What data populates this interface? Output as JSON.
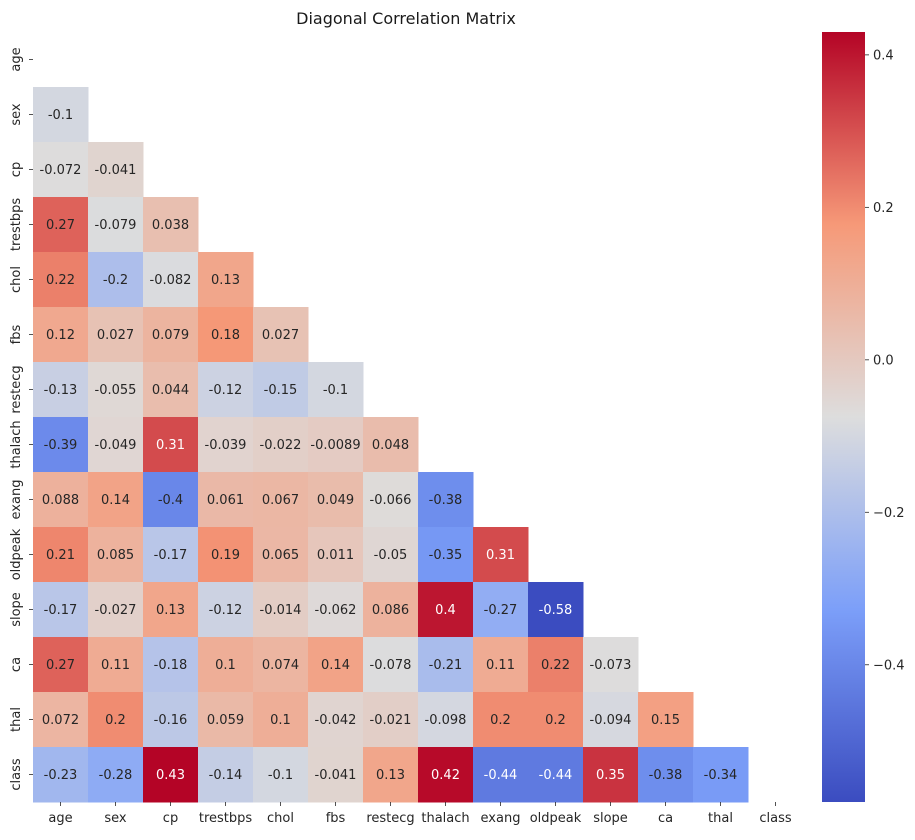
{
  "chart_data": {
    "type": "heatmap",
    "title": "Diagonal Correlation Matrix",
    "mask": "upper-triangle-including-diagonal",
    "colormap": "coolwarm",
    "labels": [
      "age",
      "sex",
      "cp",
      "trestbps",
      "chol",
      "fbs",
      "restecg",
      "thalach",
      "exang",
      "oldpeak",
      "slope",
      "ca",
      "thal",
      "class"
    ],
    "cells": [
      {
        "row": "sex",
        "col": "age",
        "value": -0.1,
        "label": "-0.1"
      },
      {
        "row": "cp",
        "col": "age",
        "value": -0.072,
        "label": "-0.072"
      },
      {
        "row": "cp",
        "col": "sex",
        "value": -0.041,
        "label": "-0.041"
      },
      {
        "row": "trestbps",
        "col": "age",
        "value": 0.27,
        "label": "0.27"
      },
      {
        "row": "trestbps",
        "col": "sex",
        "value": -0.079,
        "label": "-0.079"
      },
      {
        "row": "trestbps",
        "col": "cp",
        "value": 0.038,
        "label": "0.038"
      },
      {
        "row": "chol",
        "col": "age",
        "value": 0.22,
        "label": "0.22"
      },
      {
        "row": "chol",
        "col": "sex",
        "value": -0.2,
        "label": "-0.2"
      },
      {
        "row": "chol",
        "col": "cp",
        "value": -0.082,
        "label": "-0.082"
      },
      {
        "row": "chol",
        "col": "trestbps",
        "value": 0.13,
        "label": "0.13"
      },
      {
        "row": "fbs",
        "col": "age",
        "value": 0.12,
        "label": "0.12"
      },
      {
        "row": "fbs",
        "col": "sex",
        "value": 0.027,
        "label": "0.027"
      },
      {
        "row": "fbs",
        "col": "cp",
        "value": 0.079,
        "label": "0.079"
      },
      {
        "row": "fbs",
        "col": "trestbps",
        "value": 0.18,
        "label": "0.18"
      },
      {
        "row": "fbs",
        "col": "chol",
        "value": 0.027,
        "label": "0.027"
      },
      {
        "row": "restecg",
        "col": "age",
        "value": -0.13,
        "label": "-0.13"
      },
      {
        "row": "restecg",
        "col": "sex",
        "value": -0.055,
        "label": "-0.055"
      },
      {
        "row": "restecg",
        "col": "cp",
        "value": 0.044,
        "label": "0.044"
      },
      {
        "row": "restecg",
        "col": "trestbps",
        "value": -0.12,
        "label": "-0.12"
      },
      {
        "row": "restecg",
        "col": "chol",
        "value": -0.15,
        "label": "-0.15"
      },
      {
        "row": "restecg",
        "col": "fbs",
        "value": -0.1,
        "label": "-0.1"
      },
      {
        "row": "thalach",
        "col": "age",
        "value": -0.39,
        "label": "-0.39"
      },
      {
        "row": "thalach",
        "col": "sex",
        "value": -0.049,
        "label": "-0.049"
      },
      {
        "row": "thalach",
        "col": "cp",
        "value": 0.31,
        "label": "0.31"
      },
      {
        "row": "thalach",
        "col": "trestbps",
        "value": -0.039,
        "label": "-0.039"
      },
      {
        "row": "thalach",
        "col": "chol",
        "value": -0.022,
        "label": "-0.022"
      },
      {
        "row": "thalach",
        "col": "fbs",
        "value": -0.0089,
        "label": "-0.0089"
      },
      {
        "row": "thalach",
        "col": "restecg",
        "value": 0.048,
        "label": "0.048"
      },
      {
        "row": "exang",
        "col": "age",
        "value": 0.088,
        "label": "0.088"
      },
      {
        "row": "exang",
        "col": "sex",
        "value": 0.14,
        "label": "0.14"
      },
      {
        "row": "exang",
        "col": "cp",
        "value": -0.4,
        "label": "-0.4"
      },
      {
        "row": "exang",
        "col": "trestbps",
        "value": 0.061,
        "label": "0.061"
      },
      {
        "row": "exang",
        "col": "chol",
        "value": 0.067,
        "label": "0.067"
      },
      {
        "row": "exang",
        "col": "fbs",
        "value": 0.049,
        "label": "0.049"
      },
      {
        "row": "exang",
        "col": "restecg",
        "value": -0.066,
        "label": "-0.066"
      },
      {
        "row": "exang",
        "col": "thalach",
        "value": -0.38,
        "label": "-0.38"
      },
      {
        "row": "oldpeak",
        "col": "age",
        "value": 0.21,
        "label": "0.21"
      },
      {
        "row": "oldpeak",
        "col": "sex",
        "value": 0.085,
        "label": "0.085"
      },
      {
        "row": "oldpeak",
        "col": "cp",
        "value": -0.17,
        "label": "-0.17"
      },
      {
        "row": "oldpeak",
        "col": "trestbps",
        "value": 0.19,
        "label": "0.19"
      },
      {
        "row": "oldpeak",
        "col": "chol",
        "value": 0.065,
        "label": "0.065"
      },
      {
        "row": "oldpeak",
        "col": "fbs",
        "value": 0.011,
        "label": "0.011"
      },
      {
        "row": "oldpeak",
        "col": "restecg",
        "value": -0.05,
        "label": "-0.05"
      },
      {
        "row": "oldpeak",
        "col": "thalach",
        "value": -0.35,
        "label": "-0.35"
      },
      {
        "row": "oldpeak",
        "col": "exang",
        "value": 0.31,
        "label": "0.31"
      },
      {
        "row": "slope",
        "col": "age",
        "value": -0.17,
        "label": "-0.17"
      },
      {
        "row": "slope",
        "col": "sex",
        "value": -0.027,
        "label": "-0.027"
      },
      {
        "row": "slope",
        "col": "cp",
        "value": 0.13,
        "label": "0.13"
      },
      {
        "row": "slope",
        "col": "trestbps",
        "value": -0.12,
        "label": "-0.12"
      },
      {
        "row": "slope",
        "col": "chol",
        "value": -0.014,
        "label": "-0.014"
      },
      {
        "row": "slope",
        "col": "fbs",
        "value": -0.062,
        "label": "-0.062"
      },
      {
        "row": "slope",
        "col": "restecg",
        "value": 0.086,
        "label": "0.086"
      },
      {
        "row": "slope",
        "col": "thalach",
        "value": 0.4,
        "label": "0.4"
      },
      {
        "row": "slope",
        "col": "exang",
        "value": -0.27,
        "label": "-0.27"
      },
      {
        "row": "slope",
        "col": "oldpeak",
        "value": -0.58,
        "label": "-0.58"
      },
      {
        "row": "ca",
        "col": "age",
        "value": 0.27,
        "label": "0.27"
      },
      {
        "row": "ca",
        "col": "sex",
        "value": 0.11,
        "label": "0.11"
      },
      {
        "row": "ca",
        "col": "cp",
        "value": -0.18,
        "label": "-0.18"
      },
      {
        "row": "ca",
        "col": "trestbps",
        "value": 0.1,
        "label": "0.1"
      },
      {
        "row": "ca",
        "col": "chol",
        "value": 0.074,
        "label": "0.074"
      },
      {
        "row": "ca",
        "col": "fbs",
        "value": 0.14,
        "label": "0.14"
      },
      {
        "row": "ca",
        "col": "restecg",
        "value": -0.078,
        "label": "-0.078"
      },
      {
        "row": "ca",
        "col": "thalach",
        "value": -0.21,
        "label": "-0.21"
      },
      {
        "row": "ca",
        "col": "exang",
        "value": 0.11,
        "label": "0.11"
      },
      {
        "row": "ca",
        "col": "oldpeak",
        "value": 0.22,
        "label": "0.22"
      },
      {
        "row": "ca",
        "col": "slope",
        "value": -0.073,
        "label": "-0.073"
      },
      {
        "row": "thal",
        "col": "age",
        "value": 0.072,
        "label": "0.072"
      },
      {
        "row": "thal",
        "col": "sex",
        "value": 0.2,
        "label": "0.2"
      },
      {
        "row": "thal",
        "col": "cp",
        "value": -0.16,
        "label": "-0.16"
      },
      {
        "row": "thal",
        "col": "trestbps",
        "value": 0.059,
        "label": "0.059"
      },
      {
        "row": "thal",
        "col": "chol",
        "value": 0.1,
        "label": "0.1"
      },
      {
        "row": "thal",
        "col": "fbs",
        "value": -0.042,
        "label": "-0.042"
      },
      {
        "row": "thal",
        "col": "restecg",
        "value": -0.021,
        "label": "-0.021"
      },
      {
        "row": "thal",
        "col": "thalach",
        "value": -0.098,
        "label": "-0.098"
      },
      {
        "row": "thal",
        "col": "exang",
        "value": 0.2,
        "label": "0.2"
      },
      {
        "row": "thal",
        "col": "oldpeak",
        "value": 0.2,
        "label": "0.2"
      },
      {
        "row": "thal",
        "col": "slope",
        "value": -0.094,
        "label": "-0.094"
      },
      {
        "row": "thal",
        "col": "ca",
        "value": 0.15,
        "label": "0.15"
      },
      {
        "row": "class",
        "col": "age",
        "value": -0.23,
        "label": "-0.23"
      },
      {
        "row": "class",
        "col": "sex",
        "value": -0.28,
        "label": "-0.28"
      },
      {
        "row": "class",
        "col": "cp",
        "value": 0.43,
        "label": "0.43"
      },
      {
        "row": "class",
        "col": "trestbps",
        "value": -0.14,
        "label": "-0.14"
      },
      {
        "row": "class",
        "col": "chol",
        "value": -0.1,
        "label": "-0.1"
      },
      {
        "row": "class",
        "col": "fbs",
        "value": -0.041,
        "label": "-0.041"
      },
      {
        "row": "class",
        "col": "restecg",
        "value": 0.13,
        "label": "0.13"
      },
      {
        "row": "class",
        "col": "thalach",
        "value": 0.42,
        "label": "0.42"
      },
      {
        "row": "class",
        "col": "exang",
        "value": -0.44,
        "label": "-0.44"
      },
      {
        "row": "class",
        "col": "oldpeak",
        "value": -0.44,
        "label": "-0.44"
      },
      {
        "row": "class",
        "col": "slope",
        "value": 0.35,
        "label": "0.35"
      },
      {
        "row": "class",
        "col": "ca",
        "value": -0.38,
        "label": "-0.38"
      },
      {
        "row": "class",
        "col": "thal",
        "value": -0.34,
        "label": "-0.34"
      }
    ],
    "colorbar": {
      "vmin": -0.58,
      "vmax": 0.43,
      "ticks": [
        {
          "value": 0.4,
          "label": "0.4"
        },
        {
          "value": 0.2,
          "label": "0.2"
        },
        {
          "value": 0.0,
          "label": "0.0"
        },
        {
          "value": -0.2,
          "label": "−0.2"
        },
        {
          "value": -0.4,
          "label": "−0.4"
        }
      ]
    },
    "grid": false
  }
}
